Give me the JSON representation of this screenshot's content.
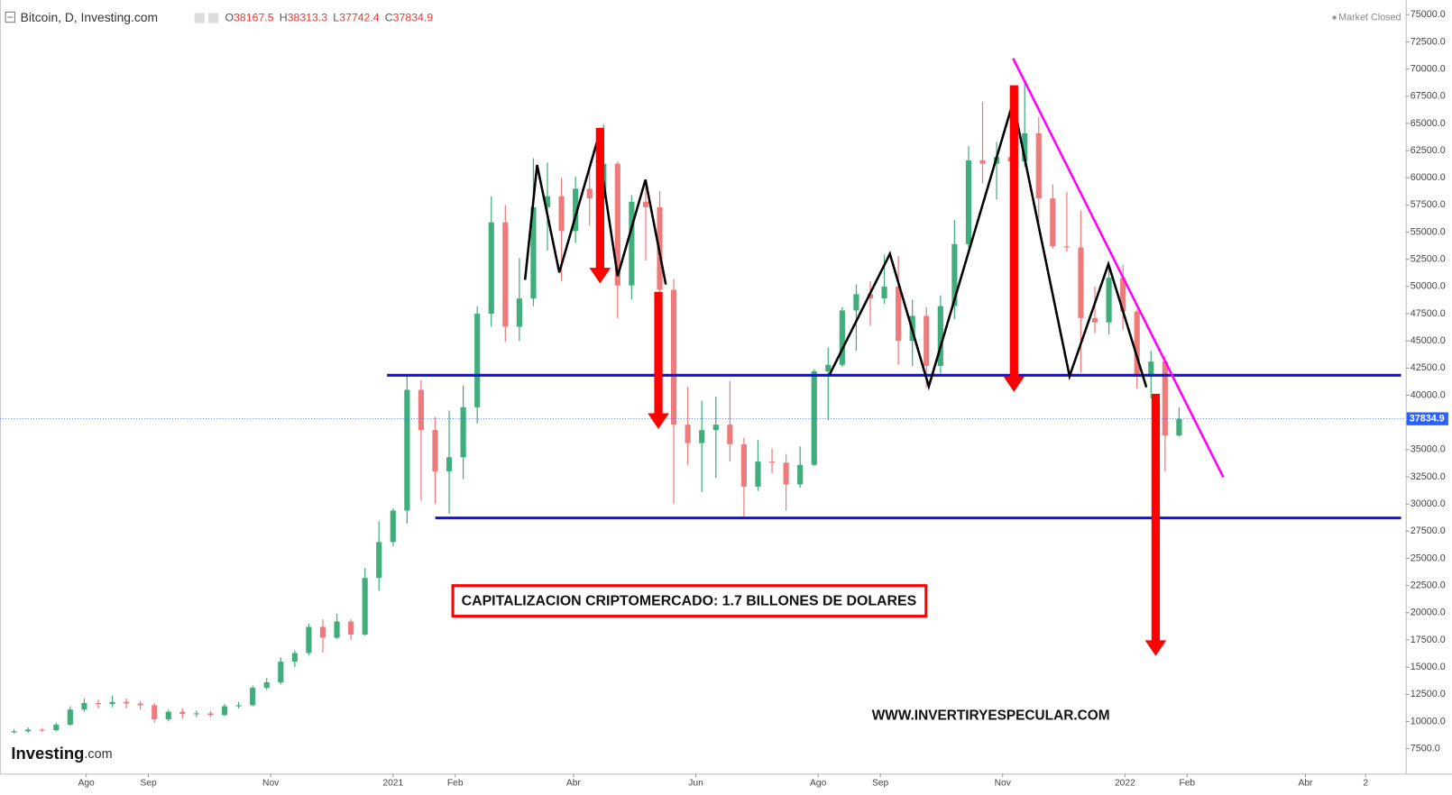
{
  "chart_data": {
    "type": "candlestick",
    "header": {
      "title": "Bitcoin, D, Investing.com",
      "ohlc": [
        {
          "label": "O",
          "value": 38167.5
        },
        {
          "label": "H",
          "value": 38313.3
        },
        {
          "label": "L",
          "value": 37742.4
        },
        {
          "label": "C",
          "value": 37834.9
        }
      ],
      "status": "Market Closed"
    },
    "annotations": {
      "box_text": "CAPITALIZACION CRIPTOMERCADO: 1.7 BILLONES DE DOLARES",
      "website": "WWW.INVERTIRYESPECULAR.COM"
    },
    "logo": {
      "brand": "Investing",
      "suffix": ".com"
    },
    "up_color": "#3fae7c",
    "down_color": "#ee7b7b",
    "grid": false,
    "x": [
      -189,
      -182,
      -175,
      -168,
      -161,
      -154,
      -147,
      -140,
      -133,
      -126,
      -119,
      -112,
      -105,
      -98,
      -91,
      -84,
      -77,
      -70,
      -63,
      -56,
      -49,
      -42,
      -35,
      -28,
      -21,
      -14,
      -7,
      0,
      7,
      14,
      21,
      28,
      35,
      42,
      49,
      56,
      63,
      70,
      77,
      84,
      91,
      98,
      105,
      112,
      119,
      126,
      133,
      140,
      147,
      154,
      161,
      168,
      175,
      182,
      189,
      196,
      203,
      210,
      217,
      224,
      231,
      238,
      245,
      252,
      259,
      266,
      273,
      280,
      287,
      294,
      301,
      308,
      315,
      322,
      329,
      336,
      343,
      350,
      357,
      364,
      371,
      378,
      385,
      392
    ],
    "open": [
      9000,
      9100,
      9250,
      9200,
      9700,
      11100,
      11700,
      11600,
      11800,
      11650,
      11500,
      10200,
      10900,
      10700,
      10750,
      10600,
      11400,
      11500,
      13100,
      13600,
      15500,
      16300,
      18700,
      17700,
      19200,
      18000,
      23200,
      26500,
      29400,
      40500,
      36800,
      33000,
      34300,
      38900,
      47500,
      55900,
      46300,
      48900,
      57300,
      58300,
      55100,
      59000,
      58100,
      61300,
      50100,
      57800,
      57300,
      49700,
      37300,
      35600,
      36800,
      37300,
      35500,
      31600,
      33900,
      33800,
      31800,
      33600,
      42200,
      42800,
      47800,
      49300,
      48900,
      50000,
      45000,
      47300,
      42700,
      48200,
      53900,
      61600,
      61300,
      61900,
      61500,
      64100,
      58100,
      53700,
      53600,
      47100,
      46700,
      50800,
      47700,
      41700,
      43100,
      36300
    ],
    "high": [
      9300,
      9450,
      9400,
      9900,
      11400,
      12100,
      12000,
      12400,
      12100,
      11900,
      11700,
      11100,
      11200,
      11000,
      10950,
      11600,
      11800,
      13300,
      14000,
      15900,
      16500,
      19000,
      19400,
      19900,
      19400,
      24100,
      28400,
      29600,
      41900,
      41400,
      38000,
      38600,
      40900,
      48200,
      58300,
      57500,
      52600,
      61800,
      61400,
      60000,
      60100,
      60700,
      64900,
      61500,
      58400,
      59500,
      58800,
      50700,
      40800,
      39500,
      39900,
      41300,
      36100,
      35900,
      35100,
      34600,
      35300,
      42400,
      44400,
      48100,
      50200,
      50500,
      52900,
      52800,
      48800,
      48100,
      49200,
      56100,
      62900,
      67000,
      63300,
      63100,
      68800,
      65600,
      59400,
      58700,
      57000,
      50000,
      51900,
      52000,
      47900,
      44100,
      43600,
      38900
    ],
    "low": [
      8900,
      8950,
      9050,
      9100,
      9600,
      10900,
      11200,
      11300,
      11200,
      11100,
      9900,
      10000,
      10300,
      10400,
      10400,
      10500,
      11200,
      11400,
      12900,
      13400,
      15000,
      16100,
      16300,
      17600,
      17500,
      17900,
      22000,
      26100,
      28200,
      30300,
      30000,
      29100,
      32300,
      37400,
      46300,
      44900,
      45000,
      48200,
      53300,
      50500,
      54000,
      55600,
      57900,
      47100,
      48800,
      52400,
      42900,
      30000,
      33600,
      31100,
      32400,
      33900,
      28800,
      31200,
      32800,
      29400,
      31500,
      33500,
      37700,
      42600,
      44100,
      46400,
      48400,
      42800,
      42700,
      40700,
      42000,
      47000,
      53600,
      59500,
      58000,
      60000,
      61000,
      55700,
      53500,
      53200,
      42100,
      45700,
      45600,
      46000,
      40600,
      39700,
      33000,
      36200
    ],
    "close": [
      9100,
      9250,
      9200,
      9700,
      11100,
      11700,
      11600,
      11800,
      11650,
      11500,
      10200,
      10900,
      10700,
      10750,
      10600,
      11400,
      11500,
      13100,
      13600,
      15500,
      16300,
      18700,
      17700,
      19200,
      18000,
      23200,
      26500,
      29400,
      40500,
      36800,
      33000,
      34300,
      38900,
      47500,
      55900,
      46300,
      48900,
      57300,
      58300,
      55100,
      59000,
      58100,
      61300,
      50100,
      57800,
      57300,
      49700,
      37300,
      35600,
      36800,
      37300,
      35500,
      31600,
      33900,
      33800,
      31800,
      33600,
      42200,
      42800,
      47800,
      49300,
      48900,
      50000,
      45000,
      47300,
      42700,
      48200,
      53900,
      61600,
      61300,
      61900,
      61500,
      64100,
      58100,
      53700,
      53600,
      47100,
      46700,
      50800,
      47700,
      41700,
      43100,
      36300,
      37834.9
    ],
    "xlim": [
      -196,
      505
    ],
    "xticks": [
      {
        "value": -153,
        "label": "Ago"
      },
      {
        "value": -122,
        "label": "Sep"
      },
      {
        "value": -61,
        "label": "Nov"
      },
      {
        "value": 0,
        "label": "2021"
      },
      {
        "value": 31,
        "label": "Feb"
      },
      {
        "value": 90,
        "label": "Abr"
      },
      {
        "value": 151,
        "label": "Jun"
      },
      {
        "value": 212,
        "label": "Ago"
      },
      {
        "value": 243,
        "label": "Sep"
      },
      {
        "value": 304,
        "label": "Nov"
      },
      {
        "value": 365,
        "label": "2022"
      },
      {
        "value": 396,
        "label": "Feb"
      },
      {
        "value": 455,
        "label": "Abr"
      },
      {
        "value": 485,
        "label": "2"
      }
    ],
    "ylim": [
      5200,
      76350
    ],
    "yticks": [
      {
        "value": 7500,
        "label": "7500.0"
      },
      {
        "value": 10000,
        "label": "10000.0"
      },
      {
        "value": 12500,
        "label": "12500.0"
      },
      {
        "value": 15000,
        "label": "15000.0"
      },
      {
        "value": 17500,
        "label": "17500.0"
      },
      {
        "value": 20000,
        "label": "20000.0"
      },
      {
        "value": 22500,
        "label": "22500.0"
      },
      {
        "value": 25000,
        "label": "25000.0"
      },
      {
        "value": 27500,
        "label": "27500.0"
      },
      {
        "value": 30000,
        "label": "30000.0"
      },
      {
        "value": 32500,
        "label": "32500.0"
      },
      {
        "value": 35000,
        "label": "35000.0"
      },
      {
        "value": 37500,
        "label": "37500.0"
      },
      {
        "value": 40000,
        "label": "40000.0"
      },
      {
        "value": 42500,
        "label": "42500.0"
      },
      {
        "value": 45000,
        "label": "45000.0"
      },
      {
        "value": 47500,
        "label": "47500.0"
      },
      {
        "value": 50000,
        "label": "50000.0"
      },
      {
        "value": 52500,
        "label": "52500.0"
      },
      {
        "value": 55000,
        "label": "55000.0"
      },
      {
        "value": 57500,
        "label": "57500.0"
      },
      {
        "value": 60000,
        "label": "60000.0"
      },
      {
        "value": 62500,
        "label": "62500.0"
      },
      {
        "value": 65000,
        "label": "65000.0"
      },
      {
        "value": 67500,
        "label": "67500.0"
      },
      {
        "value": 70000,
        "label": "70000.0"
      },
      {
        "value": 72500,
        "label": "72500.0"
      },
      {
        "value": 75000,
        "label": "75000.0"
      }
    ]
  }
}
